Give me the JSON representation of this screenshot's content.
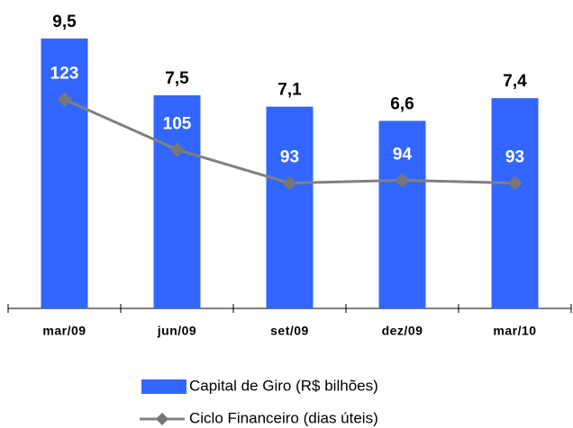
{
  "chart_data": {
    "type": "bar_line",
    "categories": [
      "mar/09",
      "jun/09",
      "set/09",
      "dez/09",
      "mar/10"
    ],
    "series": [
      {
        "name": "Capital de Giro (R$ bilhões)",
        "type": "bar",
        "color": "#3366ff",
        "axis": "y",
        "values": [
          9.5,
          7.5,
          7.1,
          6.6,
          7.4
        ],
        "value_labels": [
          "9,5",
          "7,5",
          "7,1",
          "6,6",
          "7,4"
        ]
      },
      {
        "name": "Ciclo Financeiro (dias úteis)",
        "type": "line",
        "color": "#808080",
        "axis": "y2",
        "values": [
          123,
          105,
          93,
          94,
          93
        ]
      }
    ],
    "ylim": [
      0,
      10
    ],
    "y2lim": [
      48,
      150
    ]
  }
}
